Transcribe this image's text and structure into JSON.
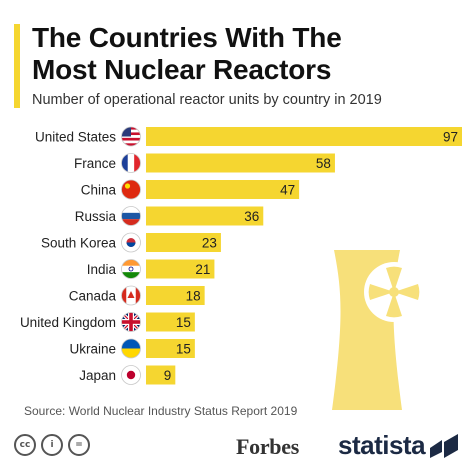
{
  "header": {
    "title_line1": "The Countries With The",
    "title_line2": "Most Nuclear Reactors",
    "subtitle": "Number of operational reactor units by country in 2019"
  },
  "chart_data": {
    "type": "bar",
    "orientation": "horizontal",
    "categories": [
      "United States",
      "France",
      "China",
      "Russia",
      "South Korea",
      "India",
      "Canada",
      "United Kingdom",
      "Ukraine",
      "Japan"
    ],
    "values": [
      97,
      58,
      47,
      36,
      23,
      21,
      18,
      15,
      15,
      9
    ],
    "title": "The Countries With The Most Nuclear Reactors",
    "subtitle": "Number of operational reactor units by country in 2019",
    "xlabel": "",
    "ylabel": "",
    "xlim": [
      0,
      97
    ],
    "grid": false,
    "legend": "none",
    "bar_color": "#f5d630",
    "data_labels": true
  },
  "colors": {
    "accent": "#f5d630",
    "tower": "#f7e07a",
    "text": "#1a1a1a",
    "brand_statista": "#1c2a44"
  },
  "footer": {
    "source": "Source: World Nuclear Industry Status Report 2019",
    "license_icons": [
      "cc-icon",
      "attribution-icon",
      "equals-icon"
    ],
    "license_glyphs": [
      "cc",
      "i",
      "="
    ],
    "forbes": "Forbes",
    "statista": "statista"
  },
  "flags": [
    "us-flag-icon",
    "france-flag-icon",
    "china-flag-icon",
    "russia-flag-icon",
    "south-korea-flag-icon",
    "india-flag-icon",
    "canada-flag-icon",
    "uk-flag-icon",
    "ukraine-flag-icon",
    "japan-flag-icon"
  ],
  "decor": {
    "background_icon": "cooling-tower-radiation-icon"
  }
}
